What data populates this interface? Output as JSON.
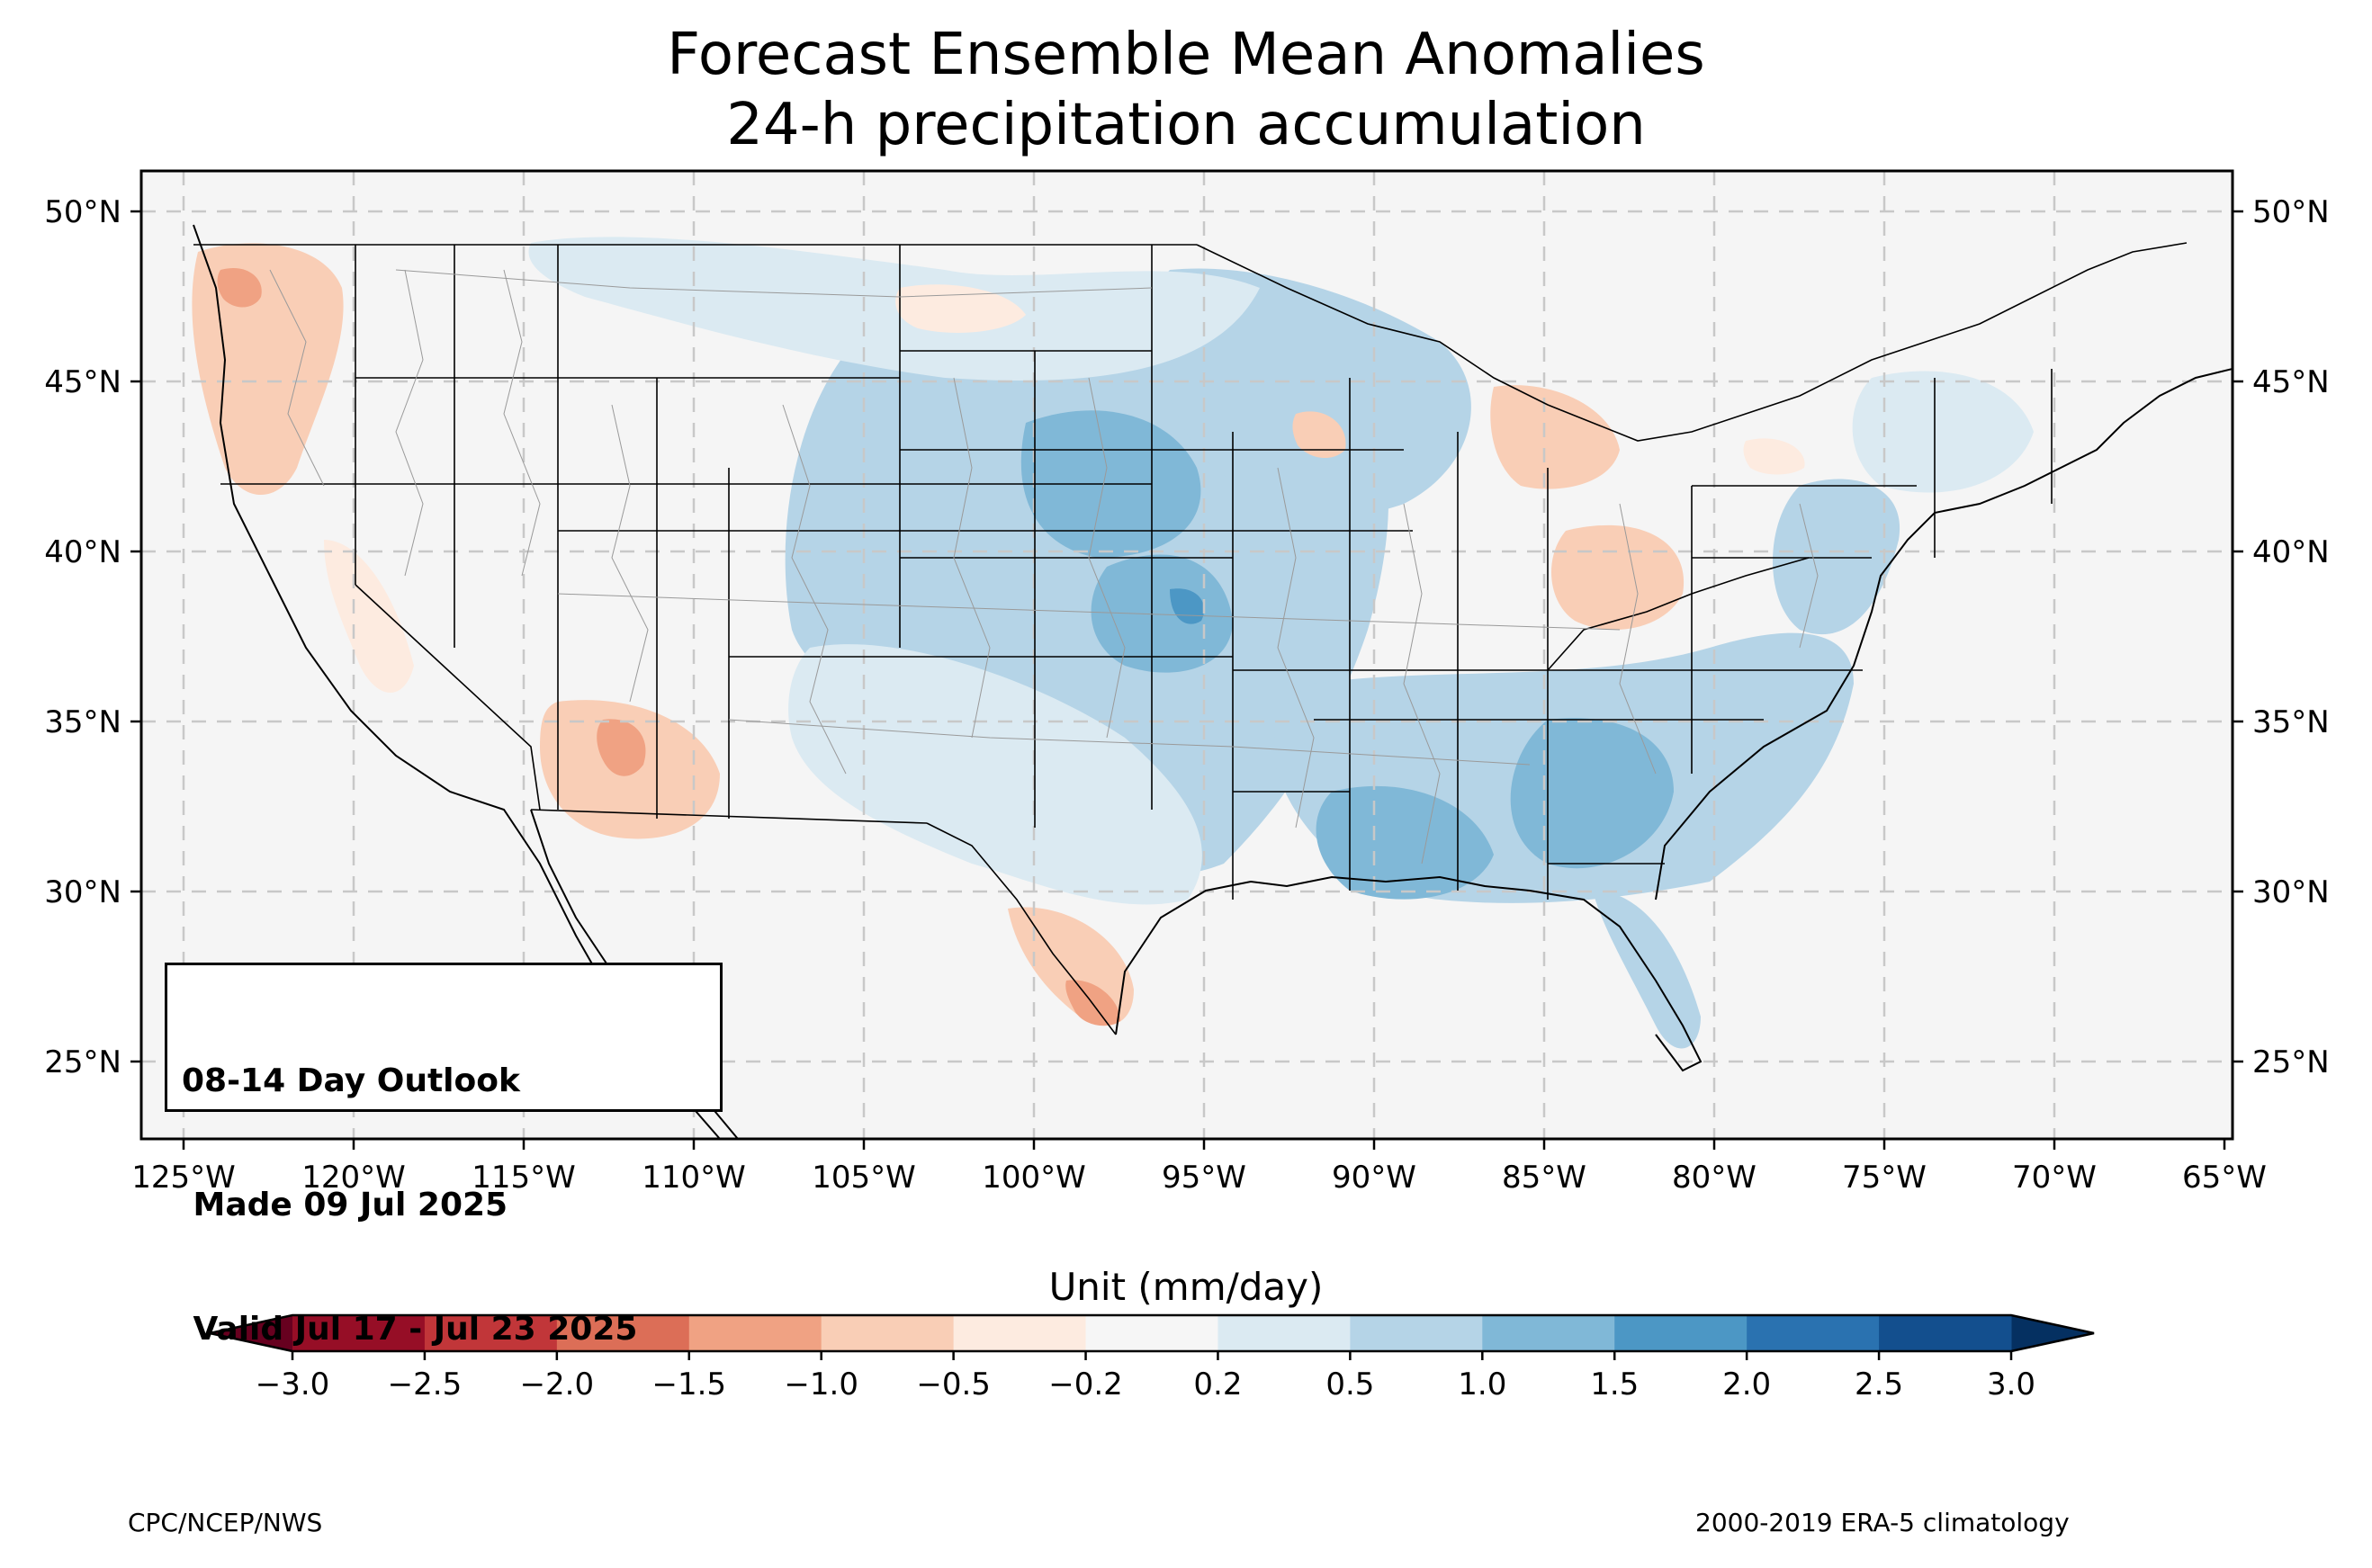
{
  "title_line1": "Forecast Ensemble Mean Anomalies",
  "title_line2": "24-h precipitation accumulation",
  "info_box": {
    "line1": "08-14 Day Outlook",
    "line2": " Made 09 Jul 2025",
    "line3": " Valid Jul 17 - Jul 23 2025"
  },
  "colorbar": {
    "label": "Unit (mm/day)",
    "ticks": [
      "−3.0",
      "−2.5",
      "−2.0",
      "−1.5",
      "−1.0",
      "−0.5",
      "−0.2",
      "0.2",
      "0.5",
      "1.0",
      "1.5",
      "2.0",
      "2.5",
      "3.0"
    ],
    "colors": [
      "#960e26",
      "#c13639",
      "#dc6e57",
      "#f0a283",
      "#f9ceb6",
      "#fdebe0",
      "#f6f6f6",
      "#dbeaf2",
      "#b5d4e7",
      "#80b8d7",
      "#4c97c5",
      "#2a72b0",
      "#134f8e"
    ],
    "under_color": "#67001f",
    "over_color": "#053061"
  },
  "lon_labels": [
    "125°W",
    "120°W",
    "115°W",
    "110°W",
    "105°W",
    "100°W",
    "95°W",
    "90°W",
    "85°W",
    "80°W",
    "75°W",
    "70°W",
    "65°W"
  ],
  "lat_labels": [
    "25°N",
    "30°N",
    "35°N",
    "40°N",
    "45°N",
    "50°N"
  ],
  "footer_left": "CPC/NCEP/NWS",
  "footer_right": "2000-2019 ERA-5 climatology",
  "map": {
    "background": "#f5f5f5",
    "anomaly_regions": [
      {
        "area": "Pacific Northwest",
        "value": -0.7
      },
      {
        "area": "Arizona",
        "value": -0.8
      },
      {
        "area": "South Texas",
        "value": -1.6
      },
      {
        "area": "Michigan",
        "value": -0.6
      },
      {
        "area": "Ohio Valley",
        "value": -0.6
      },
      {
        "area": "Central Plains",
        "value": 1.3
      },
      {
        "area": "Nebraska-Iowa",
        "value": 1.6
      },
      {
        "area": "Southeast",
        "value": 1.3
      },
      {
        "area": "Northern Rockies",
        "value": 0.5
      },
      {
        "area": "Gulf Coast",
        "value": 1.4
      },
      {
        "area": "Florida",
        "value": 0.9
      },
      {
        "area": "Mid-Atlantic",
        "value": 0.7
      }
    ]
  }
}
